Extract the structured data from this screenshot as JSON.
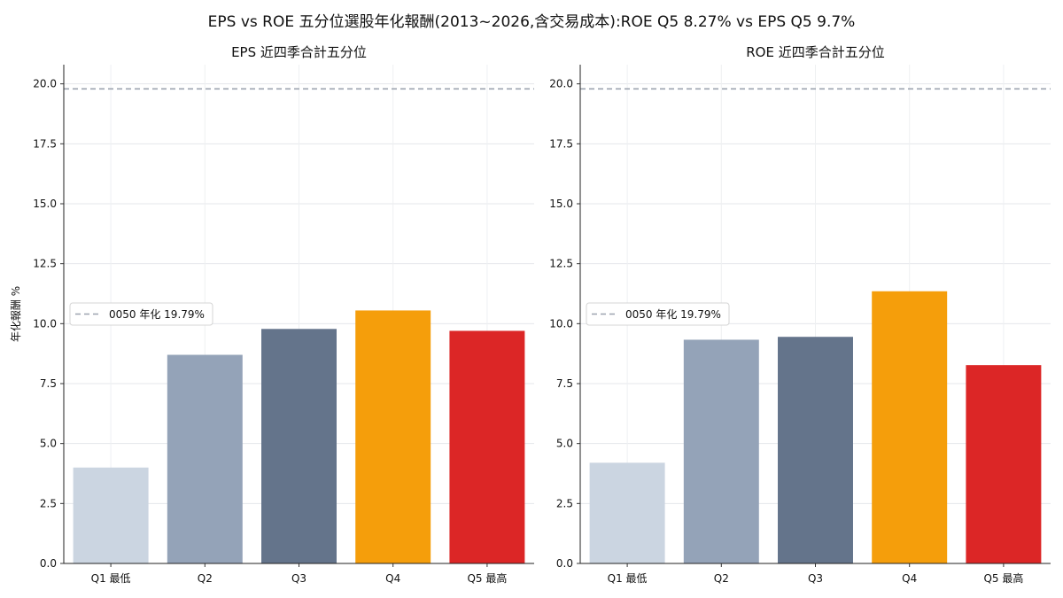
{
  "figure": {
    "title": "EPS vs ROE 五分位選股年化報酬(2013~2026,含交易成本):ROE Q5 8.27% vs EPS Q5 9.7%"
  },
  "chart_data": [
    {
      "type": "bar",
      "title": "EPS 近四季合計五分位",
      "xlabel": "",
      "ylabel": "年化報酬 %",
      "categories": [
        "Q1 最低",
        "Q2",
        "Q3",
        "Q4",
        "Q5 最高"
      ],
      "values": [
        4.0,
        8.7,
        9.78,
        10.55,
        9.7
      ],
      "colors": [
        "#cbd5e1",
        "#94a3b8",
        "#64748b",
        "#f59e0b",
        "#dc2626"
      ],
      "ylim": [
        0,
        20.8
      ],
      "yticks": [
        "0.0",
        "2.5",
        "5.0",
        "7.5",
        "10.0",
        "12.5",
        "15.0",
        "17.5",
        "20.0"
      ],
      "grid": true,
      "benchmark": {
        "label": "0050 年化 19.79%",
        "value": 19.79,
        "color": "#9ca3af"
      },
      "legend_position": "center-left"
    },
    {
      "type": "bar",
      "title": "ROE 近四季合計五分位",
      "xlabel": "",
      "ylabel": "",
      "categories": [
        "Q1 最低",
        "Q2",
        "Q3",
        "Q4",
        "Q5 最高"
      ],
      "values": [
        4.2,
        9.33,
        9.45,
        11.35,
        8.27
      ],
      "colors": [
        "#cbd5e1",
        "#94a3b8",
        "#64748b",
        "#f59e0b",
        "#dc2626"
      ],
      "ylim": [
        0,
        20.8
      ],
      "yticks": [
        "0.0",
        "2.5",
        "5.0",
        "7.5",
        "10.0",
        "12.5",
        "15.0",
        "17.5",
        "20.0"
      ],
      "grid": true,
      "benchmark": {
        "label": "0050 年化 19.79%",
        "value": 19.79,
        "color": "#9ca3af"
      },
      "legend_position": "center-left"
    }
  ]
}
